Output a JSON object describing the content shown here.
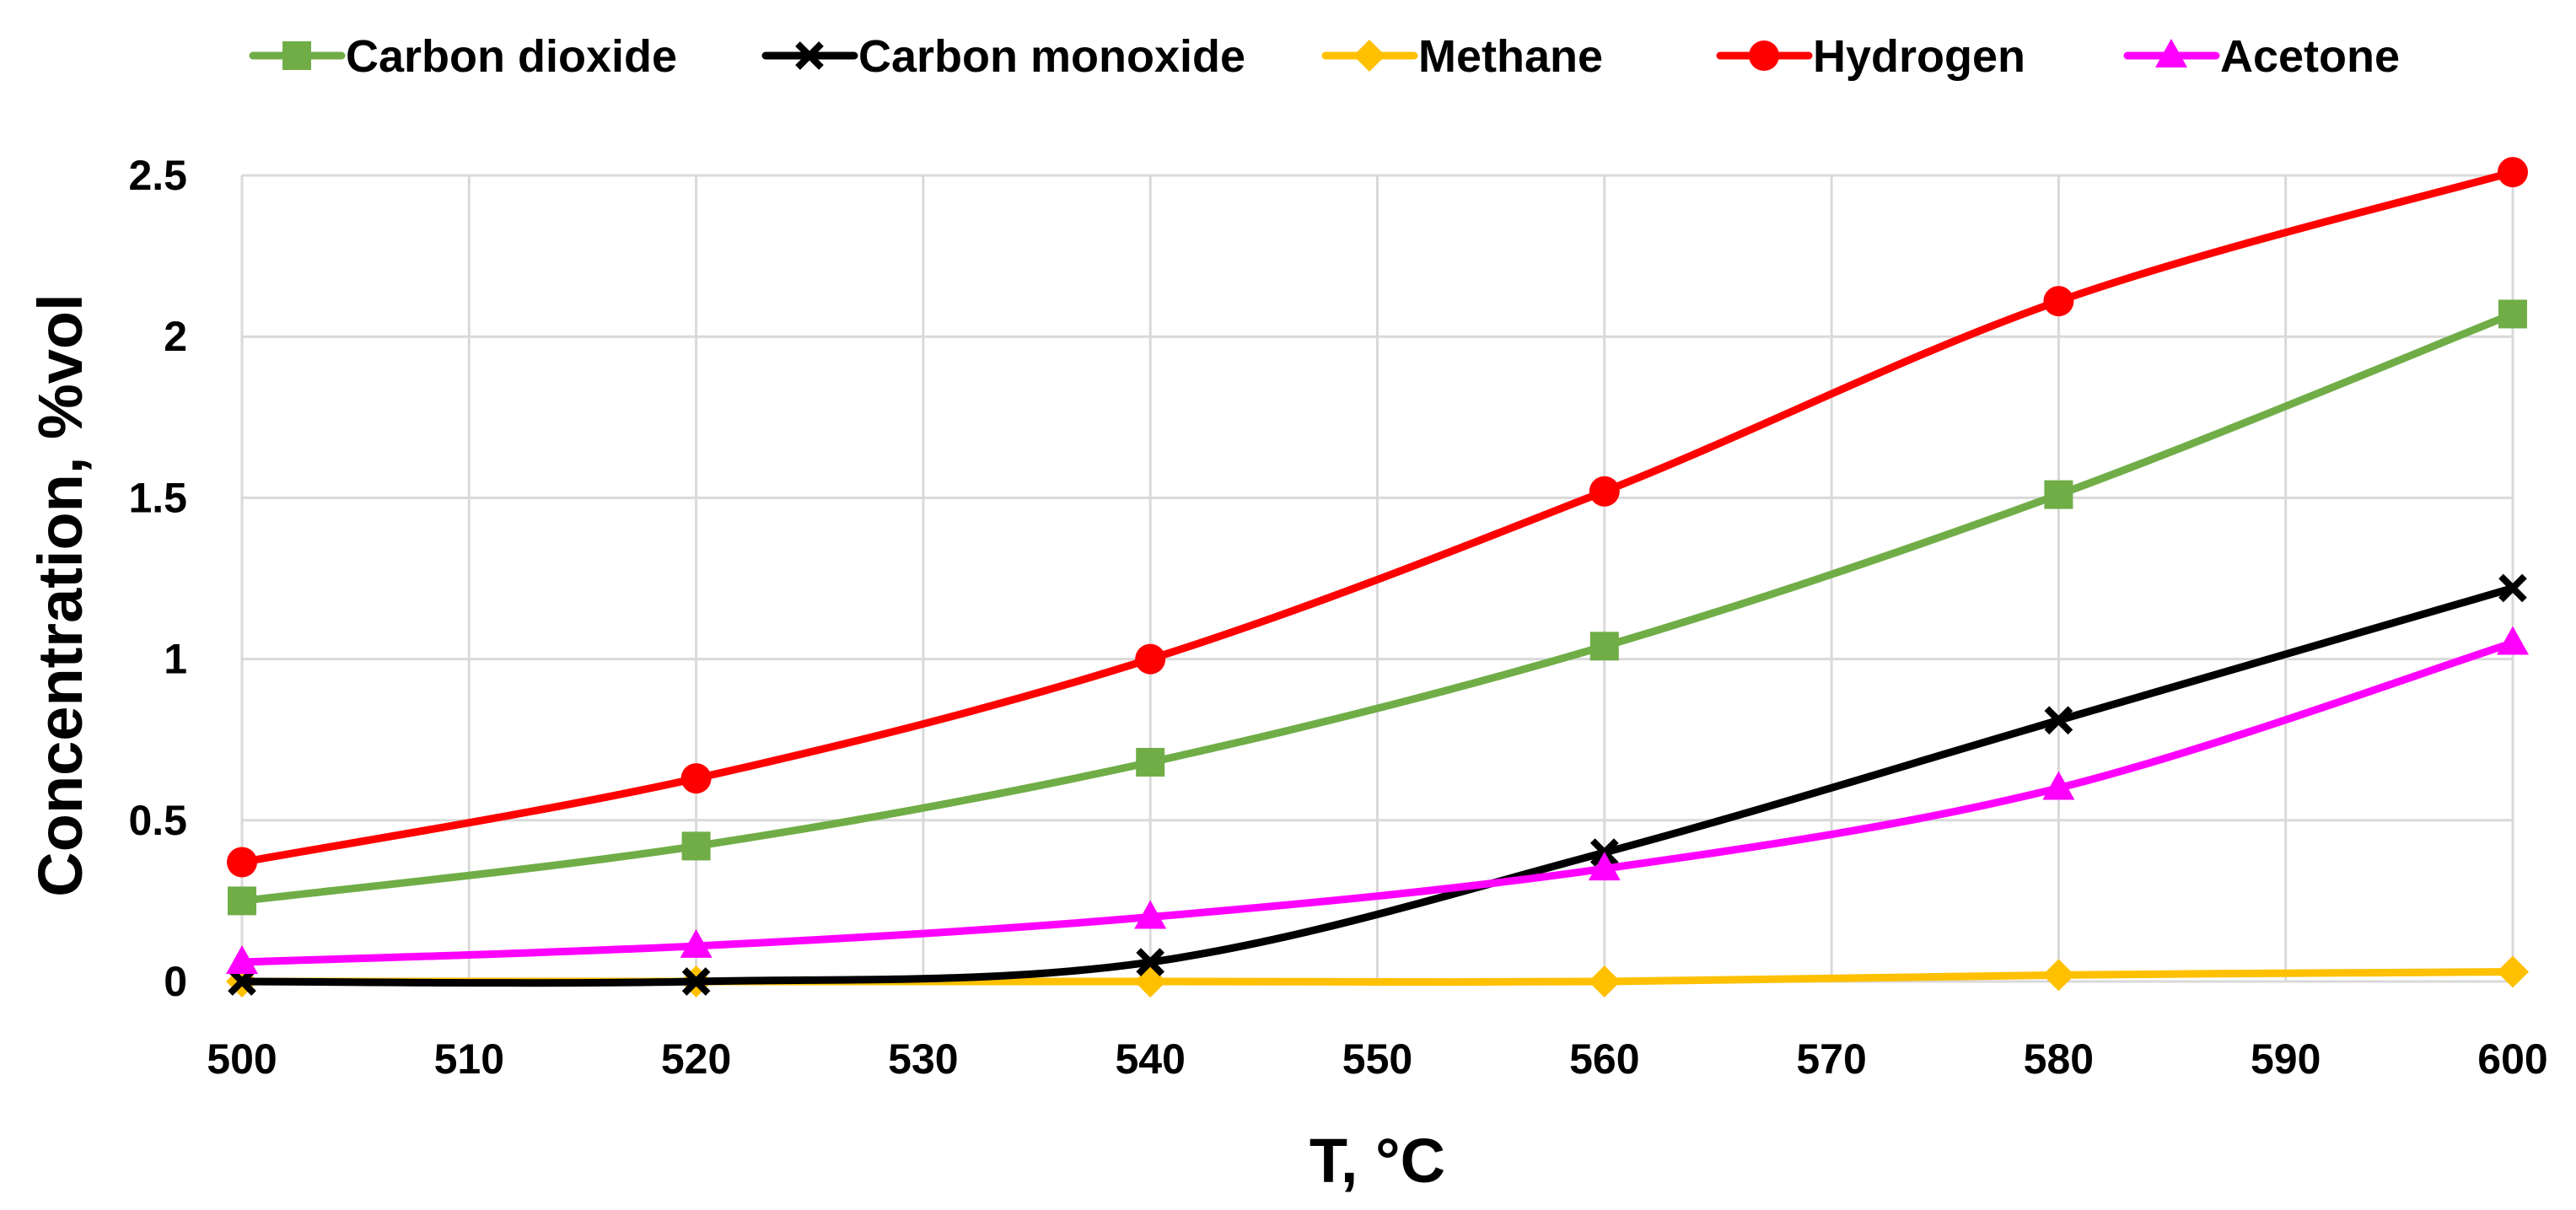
{
  "chart_data": {
    "type": "line",
    "title": "",
    "xlabel": "T, °C",
    "ylabel": "Concentration, %vol",
    "x": [
      500,
      520,
      540,
      560,
      580,
      600
    ],
    "xlim": [
      500,
      600
    ],
    "ylim": [
      0,
      2.5
    ],
    "x_ticks": [
      "500",
      "510",
      "520",
      "530",
      "540",
      "550",
      "560",
      "570",
      "580",
      "590",
      "600"
    ],
    "y_ticks": [
      "0",
      "0.5",
      "1",
      "1.5",
      "2",
      "2.5"
    ],
    "grid": true,
    "smooth": true,
    "legend_position": "top",
    "series": [
      {
        "name": "Carbon dioxide",
        "marker": "square",
        "color": "#70AD47",
        "values": [
          0.25,
          0.42,
          0.68,
          1.04,
          1.51,
          2.07
        ]
      },
      {
        "name": "Carbon monoxide",
        "marker": "x",
        "color": "#000000",
        "values": [
          0.0,
          0.0,
          0.06,
          0.4,
          0.81,
          1.22
        ]
      },
      {
        "name": "Methane",
        "marker": "diamond",
        "color": "#FFC000",
        "values": [
          0.0,
          0.0,
          0.0,
          0.0,
          0.02,
          0.03
        ]
      },
      {
        "name": "Hydrogen",
        "marker": "circle",
        "color": "#FF0000",
        "values": [
          0.37,
          0.63,
          1.0,
          1.52,
          2.11,
          2.51
        ]
      },
      {
        "name": "Acetone",
        "marker": "triangle",
        "color": "#FF00FF",
        "values": [
          0.06,
          0.11,
          0.2,
          0.35,
          0.6,
          1.05
        ]
      }
    ]
  }
}
